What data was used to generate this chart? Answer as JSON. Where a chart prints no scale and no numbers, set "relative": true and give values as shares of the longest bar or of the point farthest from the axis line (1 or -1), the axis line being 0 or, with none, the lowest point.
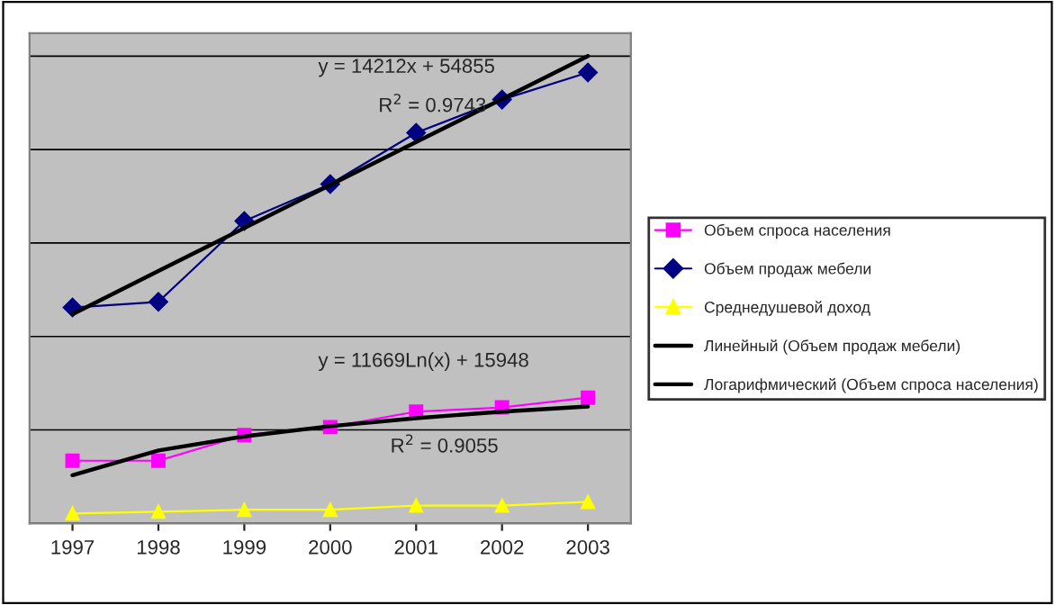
{
  "chart_data": {
    "type": "line",
    "relative": true,
    "categories": [
      "1997",
      "1998",
      "1999",
      "2000",
      "2001",
      "2002",
      "2003"
    ],
    "series": [
      {
        "name": "Объем спроса населения",
        "color": "#ff00ff",
        "marker": "square",
        "values": [
          0.134,
          0.134,
          0.189,
          0.206,
          0.239,
          0.248,
          0.269
        ]
      },
      {
        "name": "Объем продаж мебели",
        "color": "#000080",
        "marker": "diamond",
        "values": [
          0.462,
          0.474,
          0.647,
          0.726,
          0.836,
          0.907,
          0.965
        ]
      },
      {
        "name": "Среднедушевой доход",
        "color": "#ffff00",
        "marker": "triangle",
        "values": [
          0.021,
          0.025,
          0.029,
          0.029,
          0.038,
          0.038,
          0.046
        ]
      },
      {
        "name": "Линейный (Объем продаж мебели)",
        "color": "#000000",
        "marker": "none",
        "values": [
          0.4475,
          0.54,
          0.632,
          0.724,
          0.816,
          0.908,
          1.0
        ]
      },
      {
        "name": "Логарифмический (Объем спроса населения)",
        "color": "#000000",
        "marker": "none",
        "values": [
          0.103,
          0.156,
          0.186,
          0.208,
          0.225,
          0.239,
          0.25
        ]
      }
    ],
    "annotations": [
      "y = 14212x + 54855",
      "R$^{2}$ = 0.9743",
      "y = 11669Ln(x) + 15948",
      "R$^{2}$ = 0.9055"
    ],
    "grid": "y",
    "legend": "right",
    "line_style": "solid"
  }
}
